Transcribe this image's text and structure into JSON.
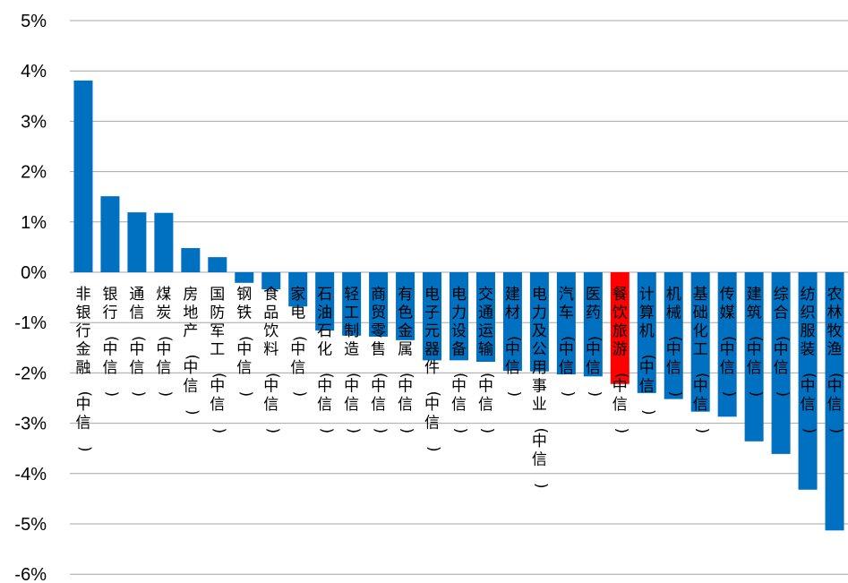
{
  "chart_data": {
    "type": "bar",
    "title": "",
    "xlabel": "",
    "ylabel": "",
    "ylim": [
      -6,
      5
    ],
    "yticks": [
      5,
      4,
      3,
      2,
      1,
      0,
      -1,
      -2,
      -3,
      -4,
      -5,
      -6
    ],
    "ytick_labels": [
      "5%",
      "4%",
      "3%",
      "2%",
      "1%",
      "0%",
      "-1%",
      "-2%",
      "-3%",
      "-4%",
      "-5%",
      "-6%"
    ],
    "grid": true,
    "legend": "none",
    "colors": {
      "default": "#0070c0",
      "highlight": "#ff0000",
      "grid": "#a6a6a6"
    },
    "highlight_category": "餐饮旅游(中信)",
    "categories": [
      "非银行金融(中信)",
      "银行(中信)",
      "通信(中信)",
      "煤炭(中信)",
      "房地产(中信)",
      "国防军工(中信)",
      "钢铁(中信)",
      "食品饮料(中信)",
      "家电(中信)",
      "石油石化(中信)",
      "轻工制造(中信)",
      "商贸零售(中信)",
      "有色金属(中信)",
      "电子元器件(中信)",
      "电力设备(中信)",
      "交通运输(中信)",
      "建材(中信)",
      "电力及公用事业(中信)",
      "汽车(中信)",
      "医药(中信)",
      "餐饮旅游(中信)",
      "计算机(中信)",
      "机械(中信)",
      "基础化工(中信)",
      "传媒(中信)",
      "建筑(中信)",
      "综合(中信)",
      "纺织服装(中信)",
      "农林牧渔(中信)"
    ],
    "values": [
      3.81,
      1.51,
      1.19,
      1.18,
      0.48,
      0.3,
      -0.21,
      -0.34,
      -0.68,
      -1.16,
      -1.26,
      -1.28,
      -1.35,
      -1.75,
      -1.75,
      -1.78,
      -1.96,
      -1.97,
      -2.03,
      -2.07,
      -2.22,
      -2.4,
      -2.52,
      -2.77,
      -2.87,
      -3.36,
      -3.61,
      -4.32,
      -5.13
    ]
  }
}
